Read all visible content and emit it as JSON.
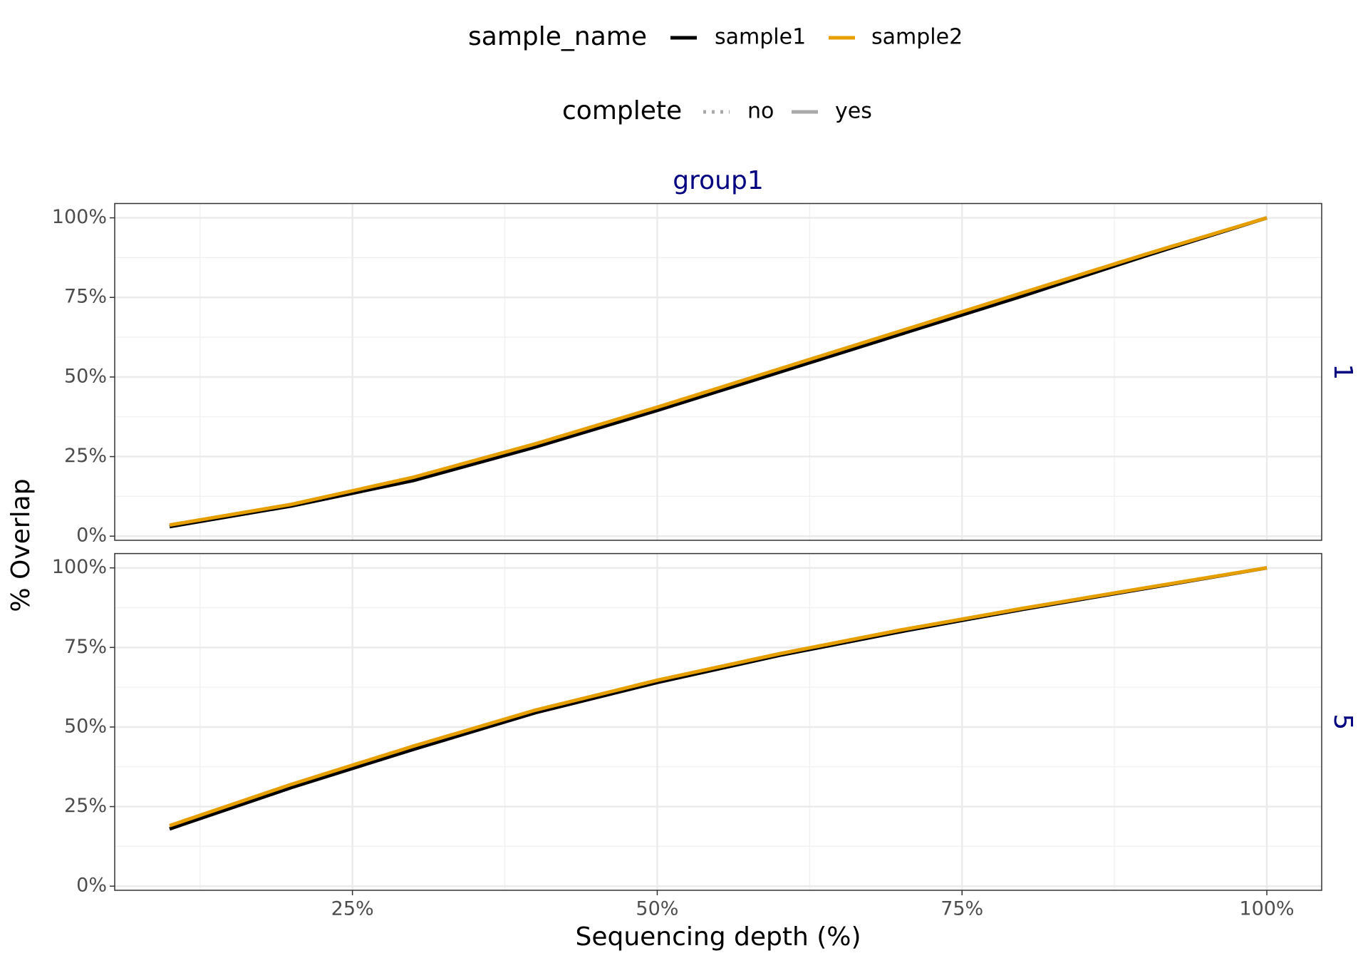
{
  "chart_data": {
    "type": "line",
    "strip": "group1",
    "x_label": "Sequencing depth (%)",
    "y_label": "% Overlap",
    "color_legend": {
      "title": "sample_name"
    },
    "linetype_legend": {
      "title": "complete",
      "entries": [
        {
          "name": "no",
          "style": "dotted"
        },
        {
          "name": "yes",
          "style": "solid"
        }
      ]
    },
    "x": [
      10,
      20,
      30,
      40,
      50,
      60,
      70,
      80,
      90,
      100
    ],
    "xlim": [
      5.5,
      104.5
    ],
    "xticks": [
      {
        "value": 25,
        "label": "25%"
      },
      {
        "value": 50,
        "label": "50%"
      },
      {
        "value": 75,
        "label": "75%"
      },
      {
        "value": 100,
        "label": "100%"
      }
    ],
    "minor_xticks": [
      12.5,
      37.5,
      62.5,
      87.5
    ],
    "ylim": [
      -1.3,
      104.5
    ],
    "yticks": [
      {
        "value": 0,
        "label": "0%"
      },
      {
        "value": 25,
        "label": "25%"
      },
      {
        "value": 50,
        "label": "50%"
      },
      {
        "value": 75,
        "label": "75%"
      },
      {
        "value": 100,
        "label": "100%"
      }
    ],
    "minor_yticks": [
      12.5,
      37.5,
      62.5,
      87.5
    ],
    "grid": true,
    "panels": [
      {
        "label": "1",
        "series": [
          {
            "name": "sample1",
            "color": "#000000",
            "style": "solid",
            "values": [
              3,
              9.5,
              17.5,
              28,
              39.5,
              51.5,
              63.5,
              75.5,
              88,
              100
            ]
          },
          {
            "name": "sample2",
            "color": "#E69F00",
            "style": "solid",
            "values": [
              3.5,
              10,
              18.5,
              29,
              40.5,
              52.5,
              64.5,
              76.5,
              88.5,
              100
            ]
          }
        ]
      },
      {
        "label": "5",
        "series": [
          {
            "name": "sample1",
            "color": "#000000",
            "style": "solid",
            "values": [
              18,
              31,
              43,
              54.5,
              64,
              72.5,
              80,
              87,
              93.5,
              100
            ]
          },
          {
            "name": "sample2",
            "color": "#E69F00",
            "style": "solid",
            "values": [
              19,
              32,
              44,
              55.3,
              64.7,
              73,
              80.5,
              87.3,
              93.7,
              100
            ]
          }
        ]
      }
    ]
  }
}
